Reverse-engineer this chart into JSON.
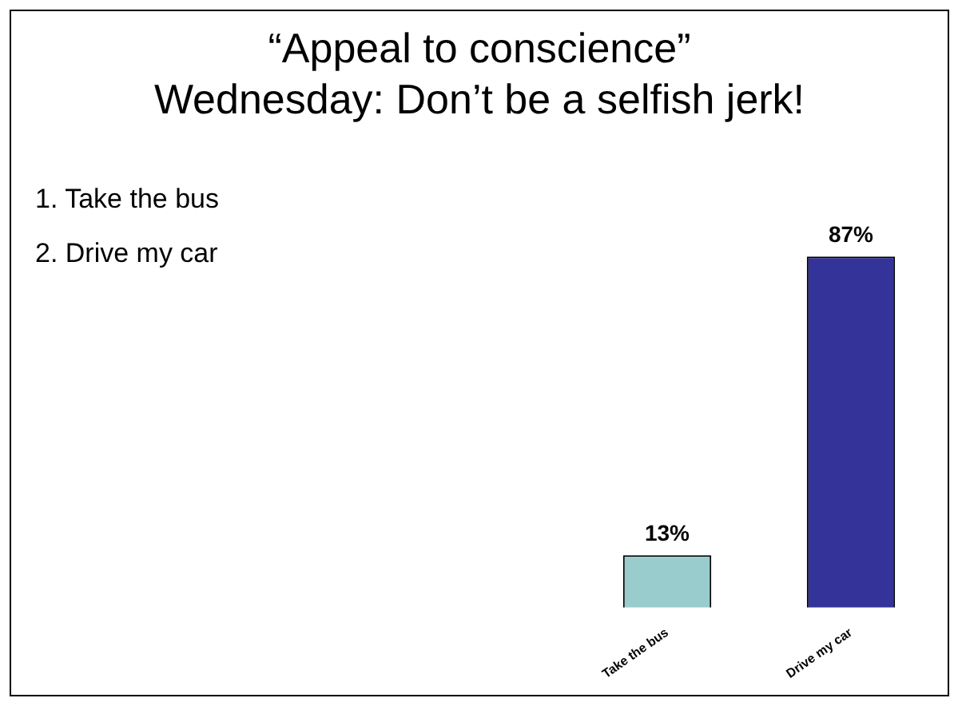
{
  "chart_data": {
    "type": "bar",
    "title": "“Appeal to conscience”",
    "subtitle": "Wednesday: Don’t be a selfish jerk!",
    "annotations": [
      "1. Take the bus",
      "2. Drive my car"
    ],
    "categories": [
      "Take the bus",
      "Drive my car"
    ],
    "values": [
      13,
      87
    ],
    "value_labels": [
      "13%",
      "87%"
    ],
    "colors": [
      "#99cccc",
      "#333399"
    ],
    "legend": false
  }
}
